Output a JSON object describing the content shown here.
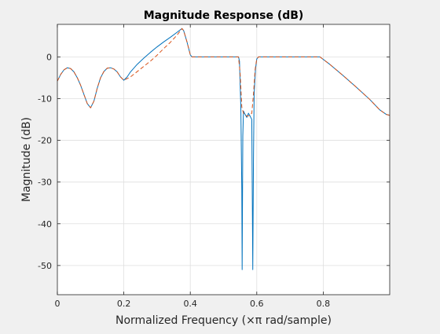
{
  "chart_data": {
    "type": "line",
    "title": "Magnitude Response (dB)",
    "xlabel": "Normalized Frequency (×π rad/sample)",
    "ylabel": "Magnitude (dB)",
    "xlim": [
      0,
      1
    ],
    "ylim": [
      -57,
      7.8
    ],
    "xticks": [
      0,
      0.2,
      0.4,
      0.6,
      0.8
    ],
    "xtick_labels": [
      "0",
      "0.2",
      "0.4",
      "0.6",
      "0.8"
    ],
    "yticks": [
      0,
      -10,
      -20,
      -30,
      -40,
      -50
    ],
    "ytick_labels": [
      "0",
      "-10",
      "-20",
      "-30",
      "-40",
      "-50"
    ],
    "grid": true,
    "legend": false,
    "series": [
      {
        "color": "#0072bd",
        "style": "solid",
        "points": [
          [
            0,
            -5.8
          ],
          [
            0.01,
            -4.2
          ],
          [
            0.02,
            -3.1
          ],
          [
            0.03,
            -2.6
          ],
          [
            0.04,
            -2.8
          ],
          [
            0.05,
            -3.6
          ],
          [
            0.06,
            -5.0
          ],
          [
            0.07,
            -6.8
          ],
          [
            0.08,
            -9.0
          ],
          [
            0.09,
            -11.2
          ],
          [
            0.1,
            -12.2
          ],
          [
            0.11,
            -10.6
          ],
          [
            0.12,
            -7.5
          ],
          [
            0.13,
            -5.0
          ],
          [
            0.14,
            -3.5
          ],
          [
            0.15,
            -2.7
          ],
          [
            0.16,
            -2.6
          ],
          [
            0.17,
            -2.9
          ],
          [
            0.18,
            -3.6
          ],
          [
            0.19,
            -4.8
          ],
          [
            0.2,
            -5.6
          ],
          [
            0.21,
            -4.8
          ],
          [
            0.22,
            -3.6
          ],
          [
            0.24,
            -1.8
          ],
          [
            0.26,
            -0.3
          ],
          [
            0.28,
            1.1
          ],
          [
            0.3,
            2.4
          ],
          [
            0.32,
            3.6
          ],
          [
            0.34,
            4.7
          ],
          [
            0.36,
            5.9
          ],
          [
            0.375,
            6.8
          ],
          [
            0.38,
            6.3
          ],
          [
            0.39,
            3.6
          ],
          [
            0.4,
            0.5
          ],
          [
            0.405,
            0
          ],
          [
            0.5,
            0
          ],
          [
            0.545,
            0
          ],
          [
            0.548,
            -1
          ],
          [
            0.552,
            -12
          ],
          [
            0.555,
            -32
          ],
          [
            0.556,
            -51
          ],
          [
            0.558,
            -19
          ],
          [
            0.56,
            -13
          ],
          [
            0.565,
            -13.8
          ],
          [
            0.57,
            -14.5
          ],
          [
            0.575,
            -13.5
          ],
          [
            0.58,
            -14.2
          ],
          [
            0.585,
            -15
          ],
          [
            0.588,
            -51
          ],
          [
            0.59,
            -25
          ],
          [
            0.592,
            -9
          ],
          [
            0.596,
            -3
          ],
          [
            0.6,
            -0.5
          ],
          [
            0.605,
            0
          ],
          [
            0.7,
            0
          ],
          [
            0.79,
            0
          ],
          [
            0.82,
            -1.8
          ],
          [
            0.86,
            -4.5
          ],
          [
            0.9,
            -7.3
          ],
          [
            0.94,
            -10.2
          ],
          [
            0.97,
            -12.7
          ],
          [
            0.99,
            -13.8
          ],
          [
            1.0,
            -14
          ]
        ]
      },
      {
        "color": "#d95319",
        "style": "dashed",
        "points": [
          [
            0,
            -5.8
          ],
          [
            0.01,
            -4.2
          ],
          [
            0.02,
            -3.1
          ],
          [
            0.03,
            -2.6
          ],
          [
            0.04,
            -2.8
          ],
          [
            0.05,
            -3.6
          ],
          [
            0.06,
            -5.0
          ],
          [
            0.07,
            -6.8
          ],
          [
            0.08,
            -9.0
          ],
          [
            0.09,
            -11.2
          ],
          [
            0.1,
            -12.2
          ],
          [
            0.11,
            -10.6
          ],
          [
            0.12,
            -7.5
          ],
          [
            0.13,
            -5.0
          ],
          [
            0.14,
            -3.5
          ],
          [
            0.15,
            -2.7
          ],
          [
            0.16,
            -2.6
          ],
          [
            0.17,
            -2.9
          ],
          [
            0.18,
            -3.6
          ],
          [
            0.19,
            -4.8
          ],
          [
            0.2,
            -5.6
          ],
          [
            0.22,
            -4.8
          ],
          [
            0.25,
            -2.9
          ],
          [
            0.28,
            -1.0
          ],
          [
            0.3,
            0.4
          ],
          [
            0.32,
            2.0
          ],
          [
            0.34,
            3.5
          ],
          [
            0.36,
            5.2
          ],
          [
            0.375,
            6.8
          ],
          [
            0.38,
            6.3
          ],
          [
            0.39,
            3.6
          ],
          [
            0.4,
            0.5
          ],
          [
            0.405,
            0
          ],
          [
            0.5,
            0
          ],
          [
            0.545,
            0
          ],
          [
            0.55,
            -4
          ],
          [
            0.555,
            -12
          ],
          [
            0.56,
            -13.5
          ],
          [
            0.57,
            -14.2
          ],
          [
            0.58,
            -14
          ],
          [
            0.585,
            -13.5
          ],
          [
            0.59,
            -9
          ],
          [
            0.595,
            -3
          ],
          [
            0.6,
            -0.5
          ],
          [
            0.605,
            0
          ],
          [
            0.79,
            0
          ],
          [
            0.82,
            -1.8
          ],
          [
            0.86,
            -4.5
          ],
          [
            0.9,
            -7.3
          ],
          [
            0.94,
            -10.2
          ],
          [
            0.97,
            -12.7
          ],
          [
            0.99,
            -13.8
          ],
          [
            1.0,
            -14
          ]
        ]
      }
    ]
  }
}
